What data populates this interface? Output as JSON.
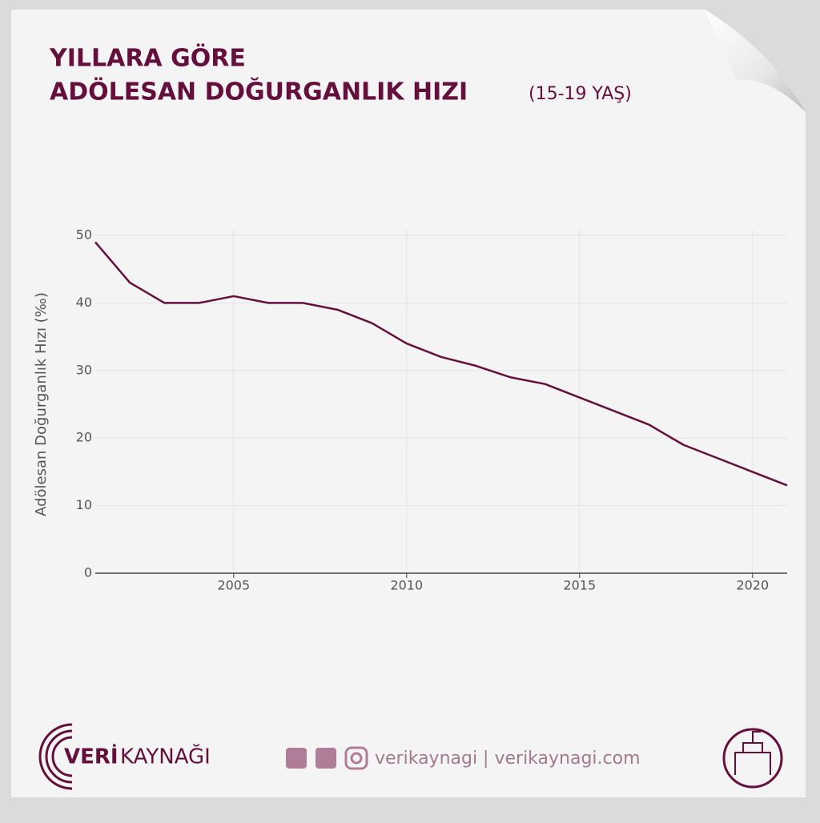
{
  "chart_data": {
    "type": "line",
    "title": "YILLARA GÖRE",
    "subtitle": "ADÖLESAN DOĞURGANLIK HIZI",
    "subtitle_note": "(15-19 YAŞ)",
    "y_label": "Adölesan Doğurganlık Hızı (‰)",
    "x": [
      2001,
      2002,
      2003,
      2004,
      2005,
      2006,
      2007,
      2008,
      2009,
      2010,
      2011,
      2012,
      2013,
      2014,
      2015,
      2016,
      2017,
      2018,
      2019,
      2020,
      2021
    ],
    "series": [
      {
        "name": "Adölesan Doğurganlık Hızı",
        "color": "#650f3c",
        "values": [
          49,
          43,
          40,
          40,
          41,
          40,
          40,
          39,
          37,
          34,
          32,
          30.7,
          29,
          28,
          26,
          24,
          22,
          19,
          17,
          15,
          13
        ]
      }
    ],
    "xlim": [
      2001,
      2021
    ],
    "xticks": [
      2005,
      2010,
      2015,
      2020
    ],
    "ylim": [
      0,
      50
    ],
    "yticks": [
      0,
      10,
      20,
      30,
      40,
      50
    ],
    "grid": true
  },
  "footer": {
    "brand_bold": "VERİ",
    "brand_light": "KAYNAĞI",
    "social": "verikaynagi | verikaynagi.com"
  }
}
